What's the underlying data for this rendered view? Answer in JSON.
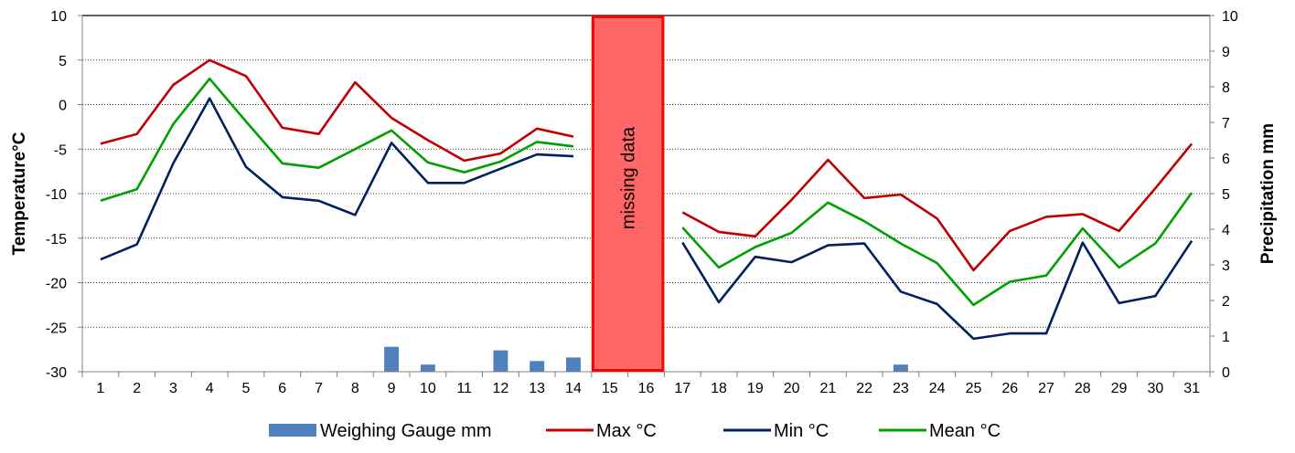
{
  "chart_data": {
    "type": "line",
    "ylabel": "Temperature°C",
    "y2label": "Precipitation mm",
    "ylim": [
      -30,
      10
    ],
    "y_ticks": [
      "-30",
      "-25",
      "-20",
      "-15",
      "-10",
      "-5",
      "0",
      "5",
      "10"
    ],
    "y2lim": [
      0,
      10
    ],
    "y2_ticks": [
      "0",
      "1",
      "2",
      "3",
      "4",
      "5",
      "6",
      "7",
      "8",
      "9",
      "10"
    ],
    "categories": [
      "1",
      "2",
      "3",
      "4",
      "5",
      "6",
      "7",
      "8",
      "9",
      "10",
      "11",
      "12",
      "13",
      "14",
      "15",
      "16",
      "17",
      "18",
      "19",
      "20",
      "21",
      "22",
      "23",
      "24",
      "25",
      "26",
      "27",
      "28",
      "29",
      "30",
      "31"
    ],
    "grid": true,
    "legend_position": "bottom",
    "annotation": {
      "text": "missing data",
      "from": "15",
      "to": "16",
      "color": "#ff6666",
      "border": "#ff0000"
    },
    "bars": {
      "name": "Weighing Gauge mm",
      "axis": "right",
      "color": "#4f81bd",
      "values": [
        0,
        0,
        0,
        0,
        0,
        0,
        0,
        0,
        0.7,
        0.2,
        0,
        0.6,
        0.3,
        0.4,
        null,
        null,
        0,
        0,
        0,
        0,
        0,
        0,
        0.2,
        0,
        0,
        0,
        0,
        0,
        0,
        0,
        0
      ]
    },
    "series": [
      {
        "name": "Max °C",
        "color": "#c00000",
        "values": [
          -4.4,
          -3.3,
          2.2,
          5.0,
          3.2,
          -2.6,
          -3.3,
          2.5,
          -1.5,
          -4.0,
          -6.3,
          -5.5,
          -2.7,
          -3.6,
          null,
          null,
          -12.1,
          -14.3,
          -14.8,
          -10.7,
          -6.2,
          -10.5,
          -10.1,
          -12.8,
          -18.6,
          -14.2,
          -12.6,
          -12.3,
          -14.2,
          -9.4,
          -4.4
        ]
      },
      {
        "name": "Min °C",
        "color": "#002060",
        "values": [
          -17.4,
          -15.7,
          -6.6,
          0.7,
          -7.0,
          -10.4,
          -10.8,
          -12.4,
          -4.3,
          -8.8,
          -8.8,
          -7.2,
          -5.6,
          -5.8,
          null,
          null,
          -15.5,
          -22.2,
          -17.1,
          -17.7,
          -15.8,
          -15.6,
          -21.0,
          -22.4,
          -26.3,
          -25.7,
          -25.7,
          -15.5,
          -22.3,
          -21.5,
          -15.3
        ]
      },
      {
        "name": "Mean °C",
        "color": "#00a000",
        "values": [
          -10.8,
          -9.5,
          -2.2,
          2.9,
          -1.9,
          -6.6,
          -7.1,
          -5.0,
          -2.9,
          -6.5,
          -7.6,
          -6.4,
          -4.2,
          -4.7,
          null,
          null,
          -13.8,
          -18.3,
          -16.0,
          -14.4,
          -11.0,
          -13.1,
          -15.6,
          -17.8,
          -22.5,
          -19.9,
          -19.2,
          -13.9,
          -18.3,
          -15.6,
          -9.9
        ]
      }
    ]
  }
}
